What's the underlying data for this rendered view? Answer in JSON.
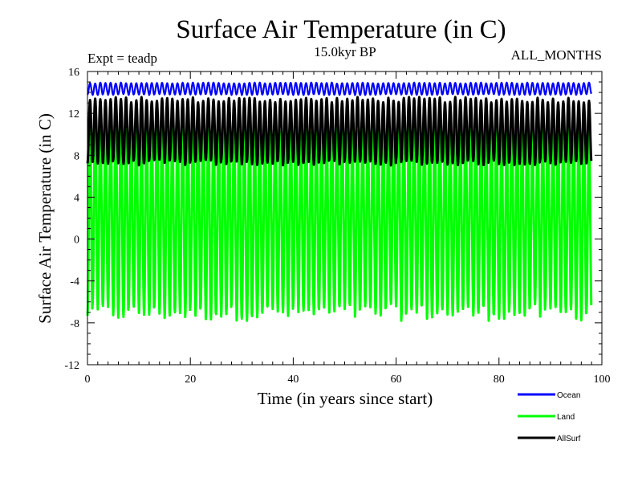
{
  "chart_data": {
    "type": "line",
    "title": "Surface Air Temperature (in C)",
    "subtitle_left": "Expt = teadp",
    "subtitle_center": "15.0kyr BP",
    "subtitle_right": "ALL_MONTHS",
    "xlabel": "Time (in years since start)",
    "ylabel": "Surface Air Temperature (in C)",
    "xlim": [
      0,
      100
    ],
    "ylim": [
      -12,
      16
    ],
    "x_ticks": [
      0,
      20,
      40,
      60,
      80,
      100
    ],
    "y_ticks": [
      -12,
      -8,
      -4,
      0,
      4,
      8,
      12,
      16
    ],
    "x_tick_labels": [
      "0",
      "20",
      "40",
      "60",
      "80",
      "100"
    ],
    "y_tick_labels": [
      "-12",
      "-8",
      "-4",
      "0",
      "4",
      "8",
      "12",
      "16"
    ],
    "time_span_years": 98,
    "series": [
      {
        "name": "Ocean",
        "color": "#0000ff",
        "seasonal_min": 13.8,
        "seasonal_max": 14.9,
        "mean": 14.3
      },
      {
        "name": "Land",
        "color": "#00ff00",
        "seasonal_min": -7.0,
        "seasonal_max": 11.0,
        "mean": 2.0
      },
      {
        "name": "AllSurf",
        "color": "#000000",
        "seasonal_min": 7.3,
        "seasonal_max": 13.3,
        "mean": 10.3
      }
    ],
    "legend_position": "bottom-right"
  }
}
